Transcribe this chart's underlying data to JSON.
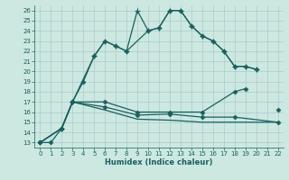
{
  "xlabel": "Humidex (Indice chaleur)",
  "xlim": [
    -0.5,
    22.5
  ],
  "ylim": [
    12.5,
    26.5
  ],
  "yticks": [
    13,
    14,
    15,
    16,
    17,
    18,
    19,
    20,
    21,
    22,
    23,
    24,
    25,
    26
  ],
  "xticks": [
    0,
    1,
    2,
    3,
    4,
    5,
    6,
    7,
    8,
    9,
    10,
    11,
    12,
    13,
    14,
    15,
    16,
    17,
    18,
    19,
    20,
    21,
    22
  ],
  "bg_color": "#cce8e0",
  "grid_color": "#aacccc",
  "line_color": "#1a6060",
  "curve1_x": [
    0,
    1,
    2,
    3,
    4,
    5,
    6,
    7,
    8,
    10,
    11,
    12,
    13,
    14,
    15,
    16,
    17,
    18,
    19,
    20
  ],
  "curve1_y": [
    13,
    13,
    14.4,
    17,
    19,
    21.5,
    23,
    22.5,
    22,
    24,
    24.3,
    26,
    26,
    24.5,
    23.5,
    23,
    22,
    20.5,
    20.5,
    20.2
  ],
  "curve2_x": [
    2,
    3,
    5,
    6,
    7,
    8,
    9,
    10,
    11,
    12,
    13,
    14,
    15,
    16,
    17,
    18,
    19,
    20
  ],
  "curve2_y": [
    14.4,
    17,
    21.5,
    23,
    22.5,
    22,
    26,
    24,
    24.3,
    26,
    26,
    24.5,
    23.5,
    23,
    22,
    20.5,
    20.5,
    20.2
  ],
  "curve3_x": [
    0,
    2,
    3,
    6,
    9,
    12,
    15,
    18,
    19,
    20,
    22
  ],
  "curve3_y": [
    13,
    14.4,
    17,
    17,
    16,
    16,
    16,
    18,
    18.3,
    null,
    16.2
  ],
  "curve4_x": [
    0,
    2,
    3,
    6,
    9,
    12,
    15,
    18,
    22
  ],
  "curve4_y": [
    13,
    14.4,
    17,
    16.5,
    15.7,
    15.8,
    15.5,
    15.5,
    15
  ],
  "curve5_x": [
    0,
    2,
    3,
    6,
    9,
    12,
    15,
    18,
    22
  ],
  "curve5_y": [
    13,
    14.4,
    17,
    16.2,
    15.3,
    15.2,
    15.0,
    15.0,
    15.0
  ]
}
